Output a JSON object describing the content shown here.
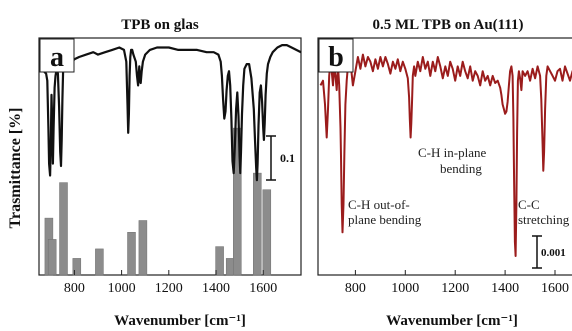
{
  "figure": {
    "ylabel": "Trasmittance [%]"
  },
  "chart_data": [
    {
      "type": "line",
      "panel_letter": "a",
      "title": "TPB on glas",
      "xlabel": "Wavenumber [cm⁻¹]",
      "ylabel": "Trasmittance [%]",
      "xlim": [
        650,
        1760
      ],
      "ylim": [
        0,
        1
      ],
      "xticks": [
        800,
        1000,
        1200,
        1400,
        1600
      ],
      "scale_bar_label": "0.1",
      "series": [
        {
          "x": [
            660,
            670,
            680,
            685,
            690,
            693,
            697,
            700,
            703,
            706,
            709,
            712,
            716,
            720,
            725,
            730,
            735,
            740,
            743,
            746,
            749,
            752,
            755,
            760,
            765,
            770,
            775,
            780,
            800,
            820,
            850,
            880,
            900,
            930,
            960,
            990,
            1010,
            1020,
            1025,
            1028,
            1031,
            1034,
            1037,
            1040,
            1045,
            1050,
            1060,
            1065,
            1070,
            1072,
            1075,
            1078,
            1081,
            1085,
            1090,
            1100,
            1120,
            1150,
            1180,
            1200,
            1240,
            1280,
            1320,
            1360,
            1390,
            1410,
            1420,
            1425,
            1430,
            1435,
            1440,
            1445,
            1450,
            1455,
            1460,
            1465,
            1470,
            1475,
            1480,
            1485,
            1490,
            1495,
            1500,
            1503,
            1506,
            1510,
            1515,
            1520,
            1530,
            1540,
            1550,
            1560,
            1565,
            1570,
            1573,
            1576,
            1580,
            1585,
            1590,
            1595,
            1600,
            1603,
            1606,
            1610,
            1615,
            1620,
            1630,
            1640,
            1660,
            1680,
            1700,
            1720,
            1740,
            1760
          ],
          "y": [
            0.86,
            0.86,
            0.85,
            0.82,
            0.62,
            0.47,
            0.42,
            0.55,
            0.76,
            0.65,
            0.47,
            0.62,
            0.79,
            0.84,
            0.87,
            0.85,
            0.71,
            0.52,
            0.46,
            0.57,
            0.74,
            0.86,
            0.88,
            0.9,
            0.88,
            0.86,
            0.88,
            0.89,
            0.91,
            0.92,
            0.93,
            0.94,
            0.93,
            0.94,
            0.95,
            0.96,
            0.95,
            0.9,
            0.72,
            0.6,
            0.68,
            0.84,
            0.92,
            0.95,
            0.95,
            0.93,
            0.9,
            0.84,
            0.8,
            0.84,
            0.88,
            0.82,
            0.81,
            0.86,
            0.9,
            0.93,
            0.95,
            0.96,
            0.96,
            0.96,
            0.95,
            0.95,
            0.95,
            0.94,
            0.94,
            0.93,
            0.9,
            0.84,
            0.74,
            0.66,
            0.69,
            0.78,
            0.84,
            0.86,
            0.8,
            0.66,
            0.48,
            0.43,
            0.55,
            0.7,
            0.77,
            0.67,
            0.5,
            0.43,
            0.52,
            0.68,
            0.8,
            0.87,
            0.89,
            0.89,
            0.83,
            0.7,
            0.57,
            0.45,
            0.4,
            0.47,
            0.63,
            0.77,
            0.8,
            0.73,
            0.62,
            0.57,
            0.64,
            0.76,
            0.85,
            0.89,
            0.92,
            0.94,
            0.96,
            0.97,
            0.97,
            0.96,
            0.95,
            0.94
          ]
        }
      ],
      "bars": {
        "x": [
          692,
          706,
          754,
          810,
          906,
          1042,
          1090,
          1415,
          1460,
          1490,
          1575,
          1615
        ],
        "height": [
          0.24,
          0.15,
          0.39,
          0.07,
          0.11,
          0.18,
          0.23,
          0.12,
          0.07,
          0.62,
          0.43,
          0.36
        ]
      }
    },
    {
      "type": "line",
      "panel_letter": "b",
      "title": "0.5 ML TPB on Au(111)",
      "xlabel": "Wavenumber [cm⁻¹]",
      "xlim": [
        650,
        1700
      ],
      "ylim": [
        0,
        1
      ],
      "xticks": [
        800,
        1000,
        1200,
        1400,
        1600
      ],
      "scale_bar_label": "0.001",
      "annotations": [
        {
          "text": "C-H in-plane bending",
          "x": 1160,
          "y": 0.62
        },
        {
          "text": "C-H out-of-plane bending",
          "x": 740,
          "y": 0.45
        },
        {
          "text": "C-C stretching",
          "x": 1590,
          "y": 0.45
        }
      ],
      "series": [
        {
          "x": [
            660,
            670,
            678,
            685,
            690,
            695,
            700,
            705,
            710,
            715,
            720,
            725,
            730,
            735,
            740,
            742,
            745,
            748,
            752,
            756,
            760,
            765,
            770,
            780,
            790,
            800,
            810,
            820,
            830,
            840,
            850,
            860,
            870,
            880,
            890,
            900,
            910,
            920,
            930,
            940,
            950,
            960,
            970,
            980,
            990,
            1000,
            1010,
            1015,
            1018,
            1021,
            1024,
            1027,
            1030,
            1035,
            1040,
            1050,
            1060,
            1070,
            1080,
            1090,
            1100,
            1110,
            1120,
            1130,
            1140,
            1150,
            1160,
            1170,
            1180,
            1190,
            1200,
            1210,
            1220,
            1230,
            1240,
            1250,
            1260,
            1270,
            1280,
            1290,
            1300,
            1310,
            1320,
            1330,
            1340,
            1350,
            1360,
            1370,
            1380,
            1385,
            1390,
            1395,
            1400,
            1405,
            1410,
            1415,
            1420,
            1425,
            1430,
            1433,
            1436,
            1439,
            1442,
            1445,
            1448,
            1451,
            1455,
            1460,
            1465,
            1470,
            1480,
            1490,
            1500,
            1510,
            1520,
            1530,
            1540,
            1545,
            1550,
            1553,
            1556,
            1560,
            1565,
            1570,
            1580,
            1590,
            1600,
            1610,
            1620,
            1630,
            1640,
            1650,
            1660,
            1670,
            1680,
            1690,
            1700
          ],
          "y": [
            0.8,
            0.82,
            0.72,
            0.58,
            0.7,
            0.84,
            0.9,
            0.86,
            0.8,
            0.88,
            0.84,
            0.78,
            0.88,
            0.8,
            0.62,
            0.5,
            0.3,
            0.18,
            0.3,
            0.52,
            0.72,
            0.82,
            0.88,
            0.9,
            0.8,
            0.86,
            0.92,
            0.87,
            0.93,
            0.88,
            0.92,
            0.9,
            0.86,
            0.91,
            0.87,
            0.92,
            0.88,
            0.92,
            0.89,
            0.85,
            0.9,
            0.87,
            0.91,
            0.86,
            0.9,
            0.87,
            0.83,
            0.75,
            0.66,
            0.58,
            0.64,
            0.74,
            0.84,
            0.88,
            0.84,
            0.9,
            0.86,
            0.92,
            0.87,
            0.9,
            0.84,
            0.9,
            0.86,
            0.92,
            0.88,
            0.83,
            0.88,
            0.84,
            0.9,
            0.87,
            0.82,
            0.88,
            0.84,
            0.9,
            0.86,
            0.83,
            0.88,
            0.82,
            0.86,
            0.84,
            0.8,
            0.86,
            0.82,
            0.84,
            0.8,
            0.84,
            0.81,
            0.82,
            0.79,
            0.76,
            0.72,
            0.7,
            0.68,
            0.69,
            0.73,
            0.8,
            0.86,
            0.88,
            0.84,
            0.66,
            0.4,
            0.14,
            0.08,
            0.3,
            0.6,
            0.82,
            0.86,
            0.83,
            0.78,
            0.86,
            0.84,
            0.86,
            0.82,
            0.87,
            0.83,
            0.88,
            0.84,
            0.74,
            0.55,
            0.44,
            0.52,
            0.7,
            0.84,
            0.88,
            0.86,
            0.84,
            0.82,
            0.86,
            0.87,
            0.82,
            0.88,
            0.85,
            0.82,
            0.86,
            0.84,
            0.82,
            0.8
          ]
        }
      ]
    }
  ]
}
